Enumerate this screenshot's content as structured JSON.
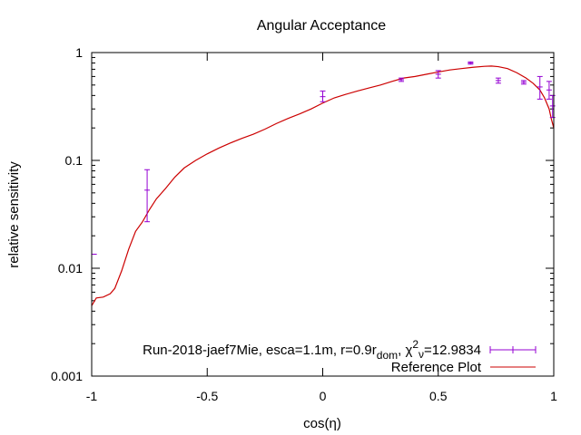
{
  "chart_data": {
    "type": "line",
    "title": "Angular Acceptance",
    "xlabel": "cos(η)",
    "ylabel": "relative sensitivity",
    "xlim": [
      -1,
      1
    ],
    "ylim": [
      0.001,
      1
    ],
    "yscale": "log",
    "x_ticks": [
      {
        "value": -1,
        "label": "-1"
      },
      {
        "value": -0.5,
        "label": "-0.5"
      },
      {
        "value": 0,
        "label": "0"
      },
      {
        "value": 0.5,
        "label": "0.5"
      },
      {
        "value": 1,
        "label": "1"
      }
    ],
    "y_ticks": [
      {
        "value": 0.001,
        "label": "0.001"
      },
      {
        "value": 0.01,
        "label": "0.01"
      },
      {
        "value": 0.1,
        "label": "0.1"
      },
      {
        "value": 1,
        "label": "1"
      }
    ],
    "legend_position": "bottom-right",
    "series": [
      {
        "kind": "errorbars",
        "legend": {
          "main": "Run-2018-jaef7Mie, esca=1.1m, r=0.9r",
          "sub": "dom",
          "mid": ", χ",
          "sup": "2",
          "sub2": "ν",
          "tail": "=12.9834"
        },
        "color": "#9400d3",
        "points": [
          {
            "x": -0.99,
            "y": 0.0135,
            "ylow": 0.0135,
            "yhigh": 0.0135
          },
          {
            "x": -0.76,
            "y": 0.053,
            "ylow": 0.027,
            "yhigh": 0.082
          },
          {
            "x": 0.0,
            "y": 0.39,
            "ylow": 0.35,
            "yhigh": 0.44
          },
          {
            "x": 0.34,
            "y": 0.56,
            "ylow": 0.54,
            "yhigh": 0.58
          },
          {
            "x": 0.5,
            "y": 0.63,
            "ylow": 0.58,
            "yhigh": 0.68
          },
          {
            "x": 0.64,
            "y": 0.8,
            "ylow": 0.78,
            "yhigh": 0.82
          },
          {
            "x": 0.76,
            "y": 0.55,
            "ylow": 0.52,
            "yhigh": 0.58
          },
          {
            "x": 0.87,
            "y": 0.53,
            "ylow": 0.51,
            "yhigh": 0.55
          },
          {
            "x": 0.94,
            "y": 0.48,
            "ylow": 0.37,
            "yhigh": 0.6
          },
          {
            "x": 0.98,
            "y": 0.45,
            "ylow": 0.37,
            "yhigh": 0.54
          },
          {
            "x": 0.995,
            "y": 0.32,
            "ylow": 0.25,
            "yhigh": 0.4
          }
        ]
      },
      {
        "kind": "line",
        "legend": {
          "main": "Reference Plot"
        },
        "color": "#cc0000",
        "x": [
          -1.0,
          -0.98,
          -0.95,
          -0.92,
          -0.9,
          -0.87,
          -0.84,
          -0.81,
          -0.78,
          -0.75,
          -0.72,
          -0.68,
          -0.64,
          -0.6,
          -0.55,
          -0.5,
          -0.45,
          -0.4,
          -0.35,
          -0.3,
          -0.25,
          -0.2,
          -0.15,
          -0.1,
          -0.05,
          0.0,
          0.05,
          0.1,
          0.15,
          0.2,
          0.25,
          0.3,
          0.35,
          0.4,
          0.45,
          0.5,
          0.55,
          0.6,
          0.65,
          0.7,
          0.73,
          0.76,
          0.8,
          0.84,
          0.88,
          0.91,
          0.94,
          0.96,
          0.98,
          0.99,
          1.0
        ],
        "y": [
          0.0045,
          0.0053,
          0.0054,
          0.0058,
          0.0065,
          0.0095,
          0.015,
          0.022,
          0.027,
          0.035,
          0.044,
          0.055,
          0.07,
          0.085,
          0.1,
          0.115,
          0.13,
          0.145,
          0.16,
          0.175,
          0.195,
          0.22,
          0.245,
          0.27,
          0.3,
          0.34,
          0.38,
          0.41,
          0.44,
          0.47,
          0.5,
          0.54,
          0.58,
          0.6,
          0.63,
          0.66,
          0.69,
          0.71,
          0.73,
          0.745,
          0.75,
          0.74,
          0.71,
          0.65,
          0.58,
          0.52,
          0.45,
          0.38,
          0.3,
          0.24,
          0.2
        ]
      }
    ]
  }
}
